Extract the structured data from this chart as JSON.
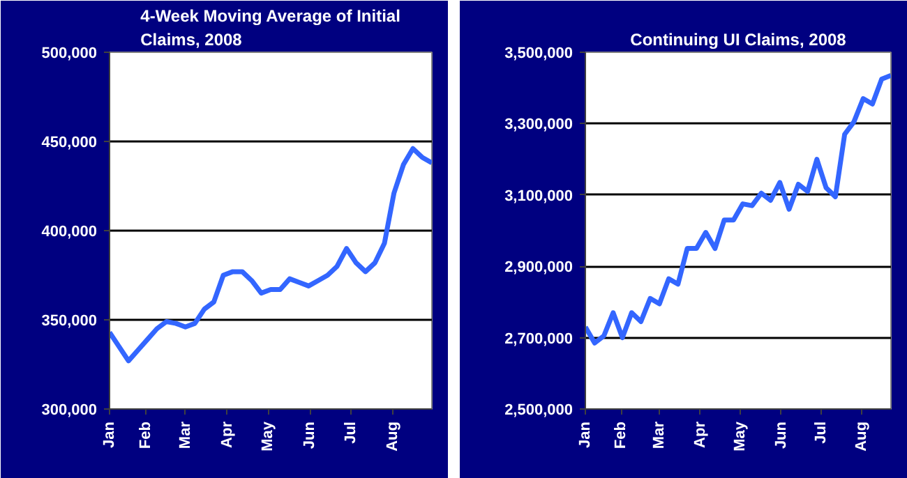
{
  "chart_data": [
    {
      "type": "line",
      "title": "4-Week Moving Average of Initial Claims, 2008",
      "x": [
        "2008-01-05",
        "2008-01-12",
        "2008-01-19",
        "2008-01-26",
        "2008-02-02",
        "2008-02-09",
        "2008-02-16",
        "2008-02-23",
        "2008-03-01",
        "2008-03-08",
        "2008-03-15",
        "2008-03-22",
        "2008-03-29",
        "2008-04-05",
        "2008-04-12",
        "2008-04-19",
        "2008-04-26",
        "2008-05-03",
        "2008-05-10",
        "2008-05-17",
        "2008-05-24",
        "2008-05-31",
        "2008-06-07",
        "2008-06-14",
        "2008-06-21",
        "2008-06-28",
        "2008-07-05",
        "2008-07-12",
        "2008-07-19",
        "2008-07-26",
        "2008-08-02",
        "2008-08-09",
        "2008-08-16",
        "2008-08-23",
        "2008-08-30"
      ],
      "series": [
        {
          "color": "#3366ff",
          "values": [
            343000,
            335000,
            327000,
            333000,
            339000,
            345000,
            349000,
            348000,
            346000,
            348000,
            356000,
            360000,
            375000,
            377000,
            377000,
            372000,
            365000,
            367000,
            367000,
            373000,
            371000,
            369000,
            372000,
            375000,
            380000,
            390000,
            382000,
            377000,
            382000,
            393000,
            421000,
            437000,
            446000,
            441000,
            438000
          ]
        }
      ],
      "xlim": [
        "2008-01-05",
        "2008-08-30"
      ],
      "xticks": [
        {
          "value": "2008-01-05",
          "label": "Jan"
        },
        {
          "value": "2008-02-01",
          "label": "Feb"
        },
        {
          "value": "2008-03-01",
          "label": "Mar"
        },
        {
          "value": "2008-04-01",
          "label": "Apr"
        },
        {
          "value": "2008-05-01",
          "label": "May"
        },
        {
          "value": "2008-06-01",
          "label": "Jun"
        },
        {
          "value": "2008-07-01",
          "label": "Jul"
        },
        {
          "value": "2008-08-01",
          "label": "Aug"
        }
      ],
      "ylim": [
        300000,
        500000
      ],
      "yticks": [
        {
          "value": 300000,
          "label": "300,000"
        },
        {
          "value": 350000,
          "label": "350,000"
        },
        {
          "value": 400000,
          "label": "400,000"
        },
        {
          "value": 450000,
          "label": "450,000"
        },
        {
          "value": 500000,
          "label": "500,000"
        }
      ],
      "grid": "y",
      "marker": "none",
      "line_style": "solid"
    },
    {
      "type": "line",
      "title": "Continuing UI Claims, 2008",
      "x": [
        "2008-01-05",
        "2008-01-12",
        "2008-01-19",
        "2008-01-26",
        "2008-02-02",
        "2008-02-09",
        "2008-02-16",
        "2008-02-23",
        "2008-03-01",
        "2008-03-08",
        "2008-03-15",
        "2008-03-22",
        "2008-03-29",
        "2008-04-05",
        "2008-04-12",
        "2008-04-19",
        "2008-04-26",
        "2008-05-03",
        "2008-05-10",
        "2008-05-17",
        "2008-05-24",
        "2008-05-31",
        "2008-06-07",
        "2008-06-14",
        "2008-06-21",
        "2008-06-28",
        "2008-07-05",
        "2008-07-12",
        "2008-07-19",
        "2008-07-26",
        "2008-08-02",
        "2008-08-09",
        "2008-08-16",
        "2008-08-23"
      ],
      "series": [
        {
          "color": "#3366ff",
          "values": [
            2730000,
            2685000,
            2705000,
            2770000,
            2700000,
            2770000,
            2745000,
            2810000,
            2795000,
            2865000,
            2850000,
            2950000,
            2950000,
            2995000,
            2950000,
            3030000,
            3030000,
            3075000,
            3070000,
            3105000,
            3085000,
            3135000,
            3060000,
            3130000,
            3110000,
            3200000,
            3120000,
            3095000,
            3270000,
            3305000,
            3370000,
            3355000,
            3425000,
            3435000
          ]
        }
      ],
      "xlim": [
        "2008-01-05",
        "2008-08-23"
      ],
      "xticks": [
        {
          "value": "2008-01-05",
          "label": "Jan"
        },
        {
          "value": "2008-02-01",
          "label": "Feb"
        },
        {
          "value": "2008-03-01",
          "label": "Mar"
        },
        {
          "value": "2008-04-01",
          "label": "Apr"
        },
        {
          "value": "2008-05-01",
          "label": "May"
        },
        {
          "value": "2008-06-01",
          "label": "Jun"
        },
        {
          "value": "2008-07-01",
          "label": "Jul"
        },
        {
          "value": "2008-08-01",
          "label": "Aug"
        }
      ],
      "ylim": [
        2500000,
        3500000
      ],
      "yticks": [
        {
          "value": 2500000,
          "label": "2,500,000"
        },
        {
          "value": 2700000,
          "label": "2,700,000"
        },
        {
          "value": 2900000,
          "label": "2,900,000"
        },
        {
          "value": 3100000,
          "label": "3,100,000"
        },
        {
          "value": 3300000,
          "label": "3,300,000"
        },
        {
          "value": 3500000,
          "label": "3,500,000"
        }
      ],
      "grid": "y",
      "marker": "none",
      "line_style": "solid"
    }
  ]
}
